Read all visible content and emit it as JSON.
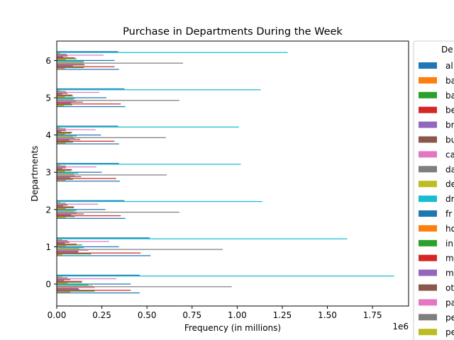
{
  "chart_data": {
    "type": "bar",
    "orientation": "horizontal",
    "title": "Purchase in Departments During the Week",
    "xlabel": "Frequency (in millions)",
    "ylabel": "Departments",
    "x_offset_label": "1e6",
    "xlim": [
      0,
      1950000
    ],
    "categories": [
      "0",
      "1",
      "2",
      "3",
      "4",
      "5",
      "6"
    ],
    "xticks": [
      {
        "value": 0,
        "label": "0.00"
      },
      {
        "value": 250000,
        "label": "0.25"
      },
      {
        "value": 500000,
        "label": "0.50"
      },
      {
        "value": 750000,
        "label": "0.75"
      },
      {
        "value": 1000000,
        "label": "1.00"
      },
      {
        "value": 1250000,
        "label": "1.25"
      },
      {
        "value": 1500000,
        "label": "1.50"
      },
      {
        "value": 1750000,
        "label": "1.75"
      }
    ],
    "legend": {
      "title": "De",
      "placement": "right, outside plot (clipped)"
    },
    "series": [
      {
        "name": "al",
        "color": "#1f77b4",
        "values": [
          460000,
          520000,
          380000,
          350000,
          345000,
          380000,
          345000
        ]
      },
      {
        "name": "ba",
        "color": "#ff7f0e",
        "values": [
          75000,
          30000,
          50000,
          50000,
          50000,
          40000,
          45000
        ]
      },
      {
        "name": "ba",
        "color": "#2ca02c",
        "values": [
          210000,
          190000,
          100000,
          90000,
          90000,
          85000,
          150000
        ]
      },
      {
        "name": "be",
        "color": "#d62728",
        "values": [
          410000,
          465000,
          355000,
          330000,
          320000,
          355000,
          320000
        ]
      },
      {
        "name": "br",
        "color": "#9467bd",
        "values": [
          125000,
          120000,
          80000,
          75000,
          70000,
          80000,
          90000
        ]
      },
      {
        "name": "bu",
        "color": "#8c564b",
        "values": [
          120000,
          120000,
          150000,
          135000,
          130000,
          145000,
          155000
        ]
      },
      {
        "name": "ca",
        "color": "#e377c2",
        "values": [
          210000,
          175000,
          110000,
          100000,
          100000,
          105000,
          150000
        ]
      },
      {
        "name": "da",
        "color": "#7f7f7f",
        "values": [
          970000,
          920000,
          680000,
          610000,
          605000,
          680000,
          700000
        ]
      },
      {
        "name": "de",
        "color": "#bcbd22",
        "values": [
          200000,
          125000,
          95000,
          95000,
          90000,
          90000,
          150000
        ]
      },
      {
        "name": "dr",
        "color": "#17becf",
        "values": [
          175000,
          150000,
          110000,
          120000,
          110000,
          100000,
          150000
        ]
      },
      {
        "name": "fr",
        "color": "#1f77b4",
        "values": [
          410000,
          345000,
          270000,
          250000,
          245000,
          275000,
          320000
        ]
      },
      {
        "name": "ho",
        "color": "#ff7f0e",
        "values": [
          60000,
          50000,
          50000,
          45000,
          45000,
          45000,
          50000
        ]
      },
      {
        "name": "in",
        "color": "#2ca02c",
        "values": [
          140000,
          140000,
          95000,
          80000,
          80000,
          90000,
          110000
        ]
      },
      {
        "name": "m",
        "color": "#d62728",
        "values": [
          140000,
          110000,
          95000,
          85000,
          85000,
          85000,
          100000
        ]
      },
      {
        "name": "m",
        "color": "#9467bd",
        "values": [
          40000,
          45000,
          35000,
          30000,
          25000,
          30000,
          35000
        ]
      },
      {
        "name": "ot",
        "color": "#8c564b",
        "values": [
          75000,
          70000,
          60000,
          50000,
          50000,
          60000,
          60000
        ]
      },
      {
        "name": "pa",
        "color": "#e377c2",
        "values": [
          330000,
          290000,
          230000,
          220000,
          215000,
          235000,
          260000
        ]
      },
      {
        "name": "pe",
        "color": "#7f7f7f",
        "values": [
          60000,
          60000,
          50000,
          50000,
          50000,
          50000,
          55000
        ]
      },
      {
        "name": "pe",
        "color": "#bcbd22",
        "values": [
          30000,
          30000,
          20000,
          20000,
          20000,
          20000,
          20000
        ]
      },
      {
        "name": "",
        "color": "#17becf",
        "values": [
          1870000,
          1610000,
          1140000,
          1020000,
          1010000,
          1130000,
          1280000
        ]
      },
      {
        "name": "",
        "color": "#1f77b4",
        "values": [
          460000,
          515000,
          375000,
          345000,
          340000,
          375000,
          340000
        ]
      }
    ],
    "grid": false
  }
}
